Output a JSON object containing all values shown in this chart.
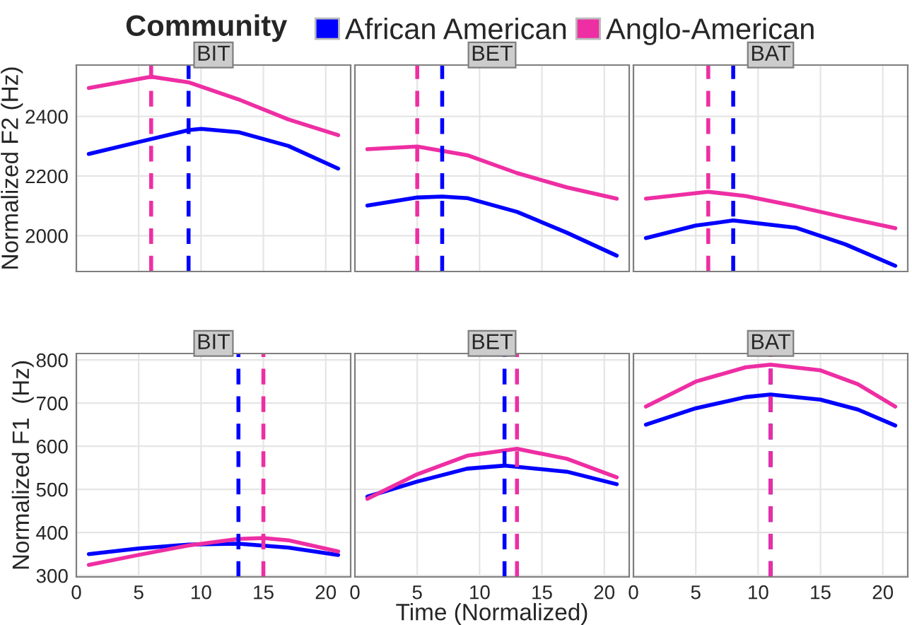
{
  "chart_data": [
    {
      "type": "line",
      "title": "BIT",
      "ylabel": "Normalized F2 (Hz)",
      "legend_title": "Community",
      "legend": "top",
      "xlim": [
        0,
        22
      ],
      "xticks": [
        0,
        5,
        10,
        15,
        20
      ],
      "ylim": [
        1880,
        2572
      ],
      "yticks": [
        2000,
        2200,
        2400
      ],
      "grid": true,
      "tick_labels": "y",
      "series": [
        {
          "name": "African American",
          "color": "#0000ff",
          "x": [
            1,
            5,
            9,
            10,
            13,
            17,
            21
          ],
          "values": [
            2274,
            2314,
            2354,
            2358,
            2347,
            2301,
            2225
          ]
        },
        {
          "name": "Anglo-American",
          "color": "#ee2ea3",
          "x": [
            1,
            6,
            9,
            13,
            17,
            21
          ],
          "values": [
            2495,
            2533,
            2514,
            2457,
            2390,
            2337
          ]
        }
      ],
      "ref_lines": [
        {
          "axis": "x",
          "value": 9,
          "color": "#0000ff",
          "line_style": "dashed"
        },
        {
          "axis": "x",
          "value": 6,
          "color": "#ee2ea3",
          "line_style": "dashed"
        }
      ]
    },
    {
      "type": "line",
      "title": "BET",
      "xlim": [
        0,
        22
      ],
      "xticks": [
        0,
        5,
        10,
        15,
        20
      ],
      "ylim": [
        1880,
        2572
      ],
      "yticks": [
        2000,
        2200,
        2400
      ],
      "grid": true,
      "tick_labels": false,
      "series": [
        {
          "color": "#0000ff",
          "x": [
            1,
            5,
            7,
            9,
            13,
            17,
            21
          ],
          "values": [
            2101,
            2128,
            2131,
            2126,
            2080,
            2010,
            1933
          ]
        },
        {
          "color": "#ee2ea3",
          "x": [
            1,
            5,
            9,
            13,
            17,
            21
          ],
          "values": [
            2290,
            2299,
            2270,
            2210,
            2162,
            2124
          ]
        }
      ],
      "ref_lines": [
        {
          "axis": "x",
          "value": 7,
          "color": "#0000ff",
          "line_style": "dashed"
        },
        {
          "axis": "x",
          "value": 5,
          "color": "#ee2ea3",
          "line_style": "dashed"
        }
      ]
    },
    {
      "type": "line",
      "title": "BAT",
      "xlim": [
        0,
        22
      ],
      "xticks": [
        0,
        5,
        10,
        15,
        20
      ],
      "ylim": [
        1880,
        2572
      ],
      "yticks": [
        2000,
        2200,
        2400
      ],
      "grid": true,
      "tick_labels": false,
      "series": [
        {
          "color": "#0000ff",
          "x": [
            1,
            5,
            8,
            13,
            17,
            21
          ],
          "values": [
            1992,
            2034,
            2051,
            2027,
            1971,
            1899
          ]
        },
        {
          "color": "#ee2ea3",
          "x": [
            1,
            6,
            9,
            13,
            17,
            21
          ],
          "values": [
            2124,
            2147,
            2133,
            2099,
            2061,
            2025
          ]
        }
      ],
      "ref_lines": [
        {
          "axis": "x",
          "value": 8,
          "color": "#0000ff",
          "line_style": "dashed"
        },
        {
          "axis": "x",
          "value": 6,
          "color": "#ee2ea3",
          "line_style": "dashed"
        }
      ]
    },
    {
      "type": "line",
      "title": "BIT",
      "ylabel": "Normalized F1  (Hz)",
      "xlim": [
        0,
        22
      ],
      "xticks": [
        0,
        5,
        10,
        15,
        20
      ],
      "ylim": [
        297,
        815
      ],
      "yticks": [
        300,
        400,
        500,
        600,
        700,
        800
      ],
      "grid": true,
      "series": [
        {
          "color": "#0000ff",
          "x": [
            1,
            5,
            9,
            13,
            17,
            21
          ],
          "values": [
            350,
            363,
            372,
            374,
            365,
            348
          ]
        },
        {
          "color": "#ee2ea3",
          "x": [
            1,
            5,
            9,
            13,
            15,
            17,
            21
          ],
          "values": [
            325,
            348,
            370,
            385,
            387,
            382,
            356
          ]
        }
      ],
      "ref_lines": [
        {
          "axis": "x",
          "value": 13,
          "color": "#0000ff",
          "line_style": "dashed"
        },
        {
          "axis": "x",
          "value": 15,
          "color": "#ee2ea3",
          "line_style": "dashed"
        }
      ]
    },
    {
      "type": "line",
      "title": "BET",
      "xlabel": "Time (Normalized)",
      "xlim": [
        0,
        22
      ],
      "xticks": [
        0,
        5,
        10,
        15,
        20
      ],
      "ylim": [
        297,
        815
      ],
      "yticks": [
        300,
        400,
        500,
        600,
        700,
        800
      ],
      "grid": true,
      "tick_labels": "x",
      "series": [
        {
          "color": "#0000ff",
          "x": [
            1,
            5,
            9,
            12,
            17,
            21
          ],
          "values": [
            483,
            518,
            548,
            555,
            541,
            512
          ]
        },
        {
          "color": "#ee2ea3",
          "x": [
            1,
            5,
            9,
            13,
            17,
            21
          ],
          "values": [
            478,
            535,
            578,
            594,
            571,
            528
          ]
        }
      ],
      "ref_lines": [
        {
          "axis": "x",
          "value": 12,
          "color": "#0000ff",
          "line_style": "dashed"
        },
        {
          "axis": "x",
          "value": 13,
          "color": "#ee2ea3",
          "line_style": "dashed"
        }
      ]
    },
    {
      "type": "line",
      "title": "BAT",
      "xlim": [
        0,
        22
      ],
      "xticks": [
        0,
        5,
        10,
        15,
        20
      ],
      "ylim": [
        297,
        815
      ],
      "yticks": [
        300,
        400,
        500,
        600,
        700,
        800
      ],
      "grid": true,
      "tick_labels": "x",
      "series": [
        {
          "color": "#0000ff",
          "x": [
            1,
            5,
            9,
            11,
            15,
            18,
            21
          ],
          "values": [
            650,
            688,
            714,
            720,
            708,
            685,
            648
          ]
        },
        {
          "color": "#ee2ea3",
          "x": [
            1,
            5,
            9,
            11,
            15,
            18,
            21
          ],
          "values": [
            692,
            750,
            783,
            789,
            776,
            744,
            692
          ]
        }
      ],
      "ref_lines": [
        {
          "axis": "x",
          "value": 11,
          "color": "#0000ff",
          "line_style": "dashed"
        },
        {
          "axis": "x",
          "value": 11,
          "color": "#ee2ea3",
          "line_style": "dashed"
        }
      ]
    }
  ]
}
